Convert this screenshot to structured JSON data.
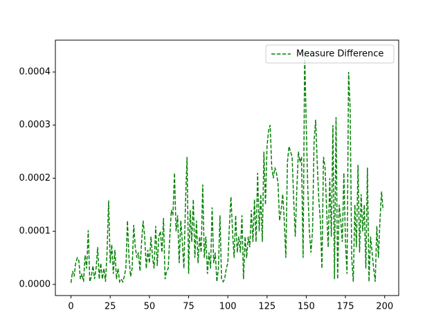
{
  "chart_data": {
    "type": "line",
    "x": [
      0,
      1,
      2,
      3,
      4,
      5,
      6,
      7,
      8,
      9,
      10,
      11,
      12,
      13,
      14,
      15,
      16,
      17,
      18,
      19,
      20,
      21,
      22,
      23,
      24,
      25,
      26,
      27,
      28,
      29,
      30,
      31,
      32,
      33,
      34,
      35,
      36,
      37,
      38,
      39,
      40,
      41,
      42,
      43,
      44,
      45,
      46,
      47,
      48,
      49,
      50,
      51,
      52,
      53,
      54,
      55,
      56,
      57,
      58,
      59,
      60,
      61,
      62,
      63,
      64,
      65,
      66,
      67,
      68,
      69,
      70,
      71,
      72,
      73,
      74,
      75,
      76,
      77,
      78,
      79,
      80,
      81,
      82,
      83,
      84,
      85,
      86,
      87,
      88,
      89,
      90,
      91,
      92,
      93,
      94,
      95,
      96,
      97,
      98,
      99,
      100,
      101,
      102,
      103,
      104,
      105,
      106,
      107,
      108,
      109,
      110,
      111,
      112,
      113,
      114,
      115,
      116,
      117,
      118,
      119,
      120,
      121,
      122,
      123,
      124,
      125,
      126,
      127,
      128,
      129,
      130,
      131,
      132,
      133,
      134,
      135,
      136,
      137,
      138,
      139,
      140,
      141,
      142,
      143,
      144,
      145,
      146,
      147,
      148,
      149,
      150,
      151,
      152,
      153,
      154,
      155,
      156,
      157,
      158,
      159,
      160,
      161,
      162,
      163,
      164,
      165,
      166,
      167,
      168,
      169,
      170,
      171,
      172,
      173,
      174,
      175,
      176,
      177,
      178,
      179,
      180,
      181,
      182,
      183,
      184,
      185,
      186,
      187,
      188,
      189,
      190,
      191,
      192,
      193,
      194,
      195,
      196,
      197,
      198,
      199
    ],
    "series": [
      {
        "name": "Measure Difference",
        "color": "#008000",
        "dashed": true,
        "values": [
          3e-06,
          2.5e-05,
          1.5e-05,
          4e-05,
          5e-05,
          4.5e-05,
          1e-05,
          2e-05,
          5e-06,
          5.5e-05,
          3e-05,
          0.000102,
          5e-06,
          1.5e-05,
          3.5e-05,
          1e-05,
          3e-05,
          7e-05,
          1e-05,
          4e-05,
          1e-05,
          3e-05,
          5e-06,
          6e-05,
          0.000158,
          4e-05,
          7.5e-05,
          2e-05,
          6.5e-05,
          1e-05,
          3e-05,
          5e-06,
          1e-05,
          5e-06,
          1.5e-05,
          3e-05,
          0.00012,
          5e-05,
          1.5e-05,
          3e-05,
          0.000112,
          7e-05,
          5e-05,
          6e-05,
          2.5e-05,
          8e-05,
          0.00012,
          9e-05,
          3e-05,
          6.5e-05,
          4e-05,
          9e-05,
          5e-05,
          3e-05,
          0.00011,
          3.5e-05,
          9e-05,
          0.0001,
          6e-05,
          0.000125,
          1e-05,
          2.5e-05,
          3e-05,
          9e-05,
          0.00014,
          0.00013,
          0.00021,
          0.0001,
          0.00013,
          4e-05,
          0.00012,
          8e-05,
          3e-05,
          0.00015,
          0.00024,
          2e-05,
          0.00014,
          8e-05,
          0.00016,
          5e-05,
          0.00012,
          4e-05,
          9e-05,
          6e-05,
          0.000188,
          5e-05,
          9e-05,
          2e-05,
          6e-05,
          3e-05,
          0.000145,
          4e-05,
          6e-05,
          5e-06,
          3e-05,
          0.00013,
          1e-05,
          5e-06,
          1e-05,
          3e-05,
          4e-05,
          0.00011,
          0.000165,
          0.0001,
          5e-05,
          0.00013,
          6e-05,
          9e-05,
          6e-05,
          0.00013,
          1e-05,
          9e-05,
          5e-05,
          9e-05,
          7e-05,
          0.00014,
          8e-05,
          0.00016,
          8e-05,
          0.00021,
          0.0001,
          0.00017,
          8e-05,
          0.00025,
          0.00015,
          0.00026,
          0.00029,
          0.0003,
          0.00022,
          0.0002,
          0.00022,
          0.00021,
          0.00019,
          0.00012,
          0.00014,
          0.00017,
          0.00012,
          5e-05,
          0.00023,
          0.00026,
          0.00025,
          0.00024,
          0.00016,
          9e-05,
          0.00018,
          0.00025,
          0.00023,
          0.00024,
          5e-05,
          0.000435,
          0.0003,
          0.00018,
          0.0001,
          6e-05,
          0.0001,
          0.00027,
          0.00031,
          0.00023,
          0.00016,
          0.00012,
          3e-05,
          0.00024,
          0.00022,
          0.00014,
          7e-05,
          0.0002,
          9e-05,
          0.0003,
          1e-05,
          0.000315,
          1e-05,
          0.00015,
          0.00012,
          8e-05,
          0.00021,
          8e-05,
          2e-05,
          0.0004,
          0.00033,
          5e-05,
          5e-06,
          0.00015,
          7e-05,
          0.000225,
          6e-05,
          0.00017,
          0.0001,
          0.00015,
          3e-05,
          0.00022,
          5e-06,
          9e-05,
          6e-05,
          3e-05,
          5e-06,
          0.00011,
          5e-05,
          0.00012,
          0.000175,
          0.00014
        ]
      }
    ],
    "xlim": [
      -9.95,
      208.95
    ],
    "xticks": [
      0,
      25,
      50,
      75,
      100,
      125,
      150,
      175,
      200
    ],
    "ylim": [
      -2.1e-05,
      0.00046
    ],
    "yticks": [
      {
        "value": 0,
        "label": "0.0000"
      },
      0.0001,
      0.0002,
      0.0003,
      0.0004
    ],
    "legend": "upper right"
  }
}
